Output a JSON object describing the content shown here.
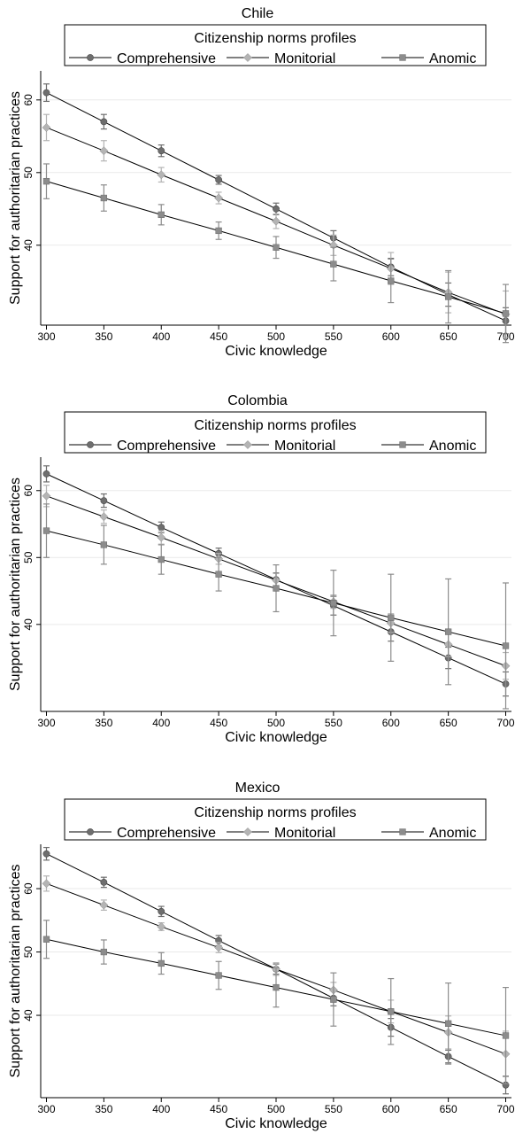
{
  "chart_data": [
    {
      "type": "line",
      "title": "Chile",
      "xlabel": "Civic knowledge",
      "ylabel": "Support for authoritarian practices",
      "legend_title": "Citizenship norms profiles",
      "legend_placement": "top",
      "grid": true,
      "x": [
        300,
        350,
        400,
        450,
        500,
        550,
        600,
        650,
        700
      ],
      "xticks": [
        "300",
        "350",
        "400",
        "450",
        "500",
        "550",
        "600",
        "650",
        "700"
      ],
      "yticks": [
        "40",
        "50",
        "60"
      ],
      "ylim": [
        29,
        64
      ],
      "series": [
        {
          "name": "Comprehensive",
          "marker": "circle",
          "color": "#6e6e6e",
          "values": [
            61.0,
            57.0,
            53.0,
            49.0,
            45.0,
            41.0,
            37.0,
            33.2,
            29.6
          ],
          "ci_low": [
            59.8,
            56.0,
            52.2,
            48.4,
            44.2,
            40.0,
            35.8,
            31.6,
            27.8
          ],
          "ci_high": [
            62.2,
            58.0,
            53.8,
            49.6,
            45.8,
            42.0,
            38.2,
            34.8,
            31.4
          ]
        },
        {
          "name": "Monitorial",
          "marker": "diamond",
          "color": "#b4b4b4",
          "values": [
            56.2,
            53.0,
            49.7,
            46.5,
            43.3,
            40.0,
            36.8,
            33.5,
            30.5
          ],
          "ci_low": [
            54.4,
            51.6,
            48.7,
            45.7,
            42.3,
            38.6,
            34.6,
            30.7,
            27.3
          ],
          "ci_high": [
            58.0,
            54.4,
            50.7,
            47.3,
            44.3,
            41.4,
            39.0,
            36.3,
            33.7
          ]
        },
        {
          "name": "Anomic",
          "marker": "square",
          "color": "#8c8c8c",
          "values": [
            48.8,
            46.5,
            44.2,
            42.0,
            39.7,
            37.4,
            35.1,
            32.9,
            30.6
          ],
          "ci_low": [
            46.4,
            44.7,
            42.8,
            40.8,
            38.2,
            35.1,
            32.1,
            29.3,
            26.6
          ],
          "ci_high": [
            51.2,
            48.3,
            45.6,
            43.2,
            41.2,
            39.7,
            38.1,
            36.5,
            34.6
          ]
        }
      ]
    },
    {
      "type": "line",
      "title": "Colombia",
      "xlabel": "Civic knowledge",
      "ylabel": "Support for authoritarian practices",
      "legend_title": "Citizenship norms profiles",
      "legend_placement": "top",
      "grid": true,
      "x": [
        300,
        350,
        400,
        450,
        500,
        550,
        600,
        650,
        700
      ],
      "xticks": [
        "300",
        "350",
        "400",
        "450",
        "500",
        "550",
        "600",
        "650",
        "700"
      ],
      "yticks": [
        "40",
        "50",
        "60"
      ],
      "ylim": [
        27,
        65
      ],
      "series": [
        {
          "name": "Comprehensive",
          "marker": "circle",
          "color": "#6e6e6e",
          "values": [
            62.5,
            58.5,
            54.5,
            50.6,
            46.7,
            42.8,
            38.9,
            35.0,
            31.1
          ],
          "ci_low": [
            61.3,
            57.5,
            53.7,
            49.8,
            45.7,
            41.4,
            37.5,
            33.4,
            29.3
          ],
          "ci_high": [
            63.7,
            59.5,
            55.3,
            51.4,
            47.7,
            44.2,
            40.3,
            36.6,
            32.9
          ]
        },
        {
          "name": "Monitorial",
          "marker": "diamond",
          "color": "#b4b4b4",
          "values": [
            59.2,
            56.1,
            53.0,
            49.8,
            46.6,
            43.4,
            40.2,
            37.0,
            33.8
          ],
          "ci_low": [
            57.6,
            55.1,
            52.0,
            49.0,
            45.6,
            42.4,
            38.8,
            35.2,
            31.8
          ],
          "ci_high": [
            60.8,
            57.1,
            54.0,
            50.6,
            47.6,
            44.4,
            41.6,
            38.8,
            35.8
          ]
        },
        {
          "name": "Anomic",
          "marker": "square",
          "color": "#8c8c8c",
          "values": [
            54.0,
            51.9,
            49.7,
            47.5,
            45.4,
            43.2,
            41.0,
            38.9,
            36.8
          ],
          "ci_low": [
            50.0,
            49.0,
            47.5,
            45.0,
            41.9,
            38.3,
            34.5,
            31.0,
            27.4
          ],
          "ci_high": [
            58.0,
            54.8,
            51.9,
            50.0,
            48.9,
            48.1,
            47.5,
            46.8,
            46.2
          ]
        }
      ]
    },
    {
      "type": "line",
      "title": "Mexico",
      "xlabel": "Civic knowledge",
      "ylabel": "Support for authoritarian practices",
      "legend_title": "Citizenship norms profiles",
      "legend_placement": "top",
      "grid": true,
      "x": [
        300,
        350,
        400,
        450,
        500,
        550,
        600,
        650,
        700
      ],
      "xticks": [
        "300",
        "350",
        "400",
        "450",
        "500",
        "550",
        "600",
        "650",
        "700"
      ],
      "yticks": [
        "40",
        "50",
        "60"
      ],
      "ylim": [
        27,
        67
      ],
      "series": [
        {
          "name": "Comprehensive",
          "marker": "circle",
          "color": "#6e6e6e",
          "values": [
            65.5,
            61.0,
            56.4,
            51.8,
            47.3,
            42.7,
            38.1,
            33.5,
            29.0
          ],
          "ci_low": [
            64.5,
            60.2,
            55.6,
            51.0,
            46.5,
            41.5,
            36.7,
            32.5,
            27.6
          ],
          "ci_high": [
            66.5,
            61.8,
            57.2,
            52.6,
            48.1,
            43.9,
            39.5,
            34.5,
            30.4
          ]
        },
        {
          "name": "Monitorial",
          "marker": "diamond",
          "color": "#b4b4b4",
          "values": [
            60.8,
            57.4,
            54.0,
            50.7,
            47.3,
            44.0,
            40.6,
            37.3,
            33.9
          ],
          "ci_low": [
            59.6,
            56.6,
            53.4,
            49.9,
            46.3,
            42.8,
            38.8,
            34.7,
            30.3
          ],
          "ci_high": [
            62.0,
            58.2,
            54.6,
            51.5,
            48.3,
            45.2,
            42.4,
            39.9,
            37.5
          ]
        },
        {
          "name": "Anomic",
          "marker": "square",
          "color": "#8c8c8c",
          "values": [
            52.0,
            50.0,
            48.2,
            46.3,
            44.4,
            42.5,
            40.6,
            38.7,
            36.8
          ],
          "ci_low": [
            49.0,
            48.1,
            46.5,
            44.1,
            41.3,
            38.3,
            35.4,
            32.3,
            29.2
          ],
          "ci_high": [
            55.0,
            51.9,
            49.9,
            48.5,
            47.5,
            46.7,
            45.8,
            45.1,
            44.4
          ]
        }
      ]
    }
  ]
}
